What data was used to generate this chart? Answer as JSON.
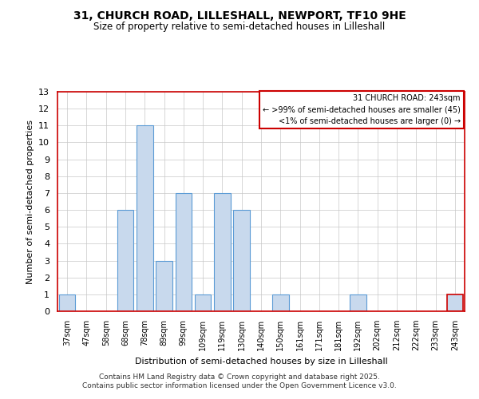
{
  "title_line1": "31, CHURCH ROAD, LILLESHALL, NEWPORT, TF10 9HE",
  "title_line2": "Size of property relative to semi-detached houses in Lilleshall",
  "xlabel": "Distribution of semi-detached houses by size in Lilleshall",
  "ylabel": "Number of semi-detached properties",
  "bins": [
    "37sqm",
    "47sqm",
    "58sqm",
    "68sqm",
    "78sqm",
    "89sqm",
    "99sqm",
    "109sqm",
    "119sqm",
    "130sqm",
    "140sqm",
    "150sqm",
    "161sqm",
    "171sqm",
    "181sqm",
    "192sqm",
    "202sqm",
    "212sqm",
    "222sqm",
    "233sqm",
    "243sqm"
  ],
  "values": [
    1,
    0,
    0,
    6,
    11,
    3,
    7,
    1,
    7,
    6,
    0,
    1,
    0,
    0,
    0,
    1,
    0,
    0,
    0,
    0,
    1
  ],
  "bar_color": "#c8d9ed",
  "bar_edgecolor": "#5b9bd5",
  "highlight_index": 20,
  "highlight_edgecolor": "#cc0000",
  "highlight_facecolor": "#c8d9ed",
  "ylim": [
    0,
    13
  ],
  "yticks": [
    0,
    1,
    2,
    3,
    4,
    5,
    6,
    7,
    8,
    9,
    10,
    11,
    12,
    13
  ],
  "legend_title": "31 CHURCH ROAD: 243sqm",
  "legend_line1": "← >99% of semi-detached houses are smaller (45)",
  "legend_line2": "<1% of semi-detached houses are larger (0) →",
  "legend_edgecolor": "#cc0000",
  "footer_line1": "Contains HM Land Registry data © Crown copyright and database right 2025.",
  "footer_line2": "Contains public sector information licensed under the Open Government Licence v3.0.",
  "bg_color": "#ffffff",
  "grid_color": "#c8c8c8",
  "spine_color": "#cc0000"
}
